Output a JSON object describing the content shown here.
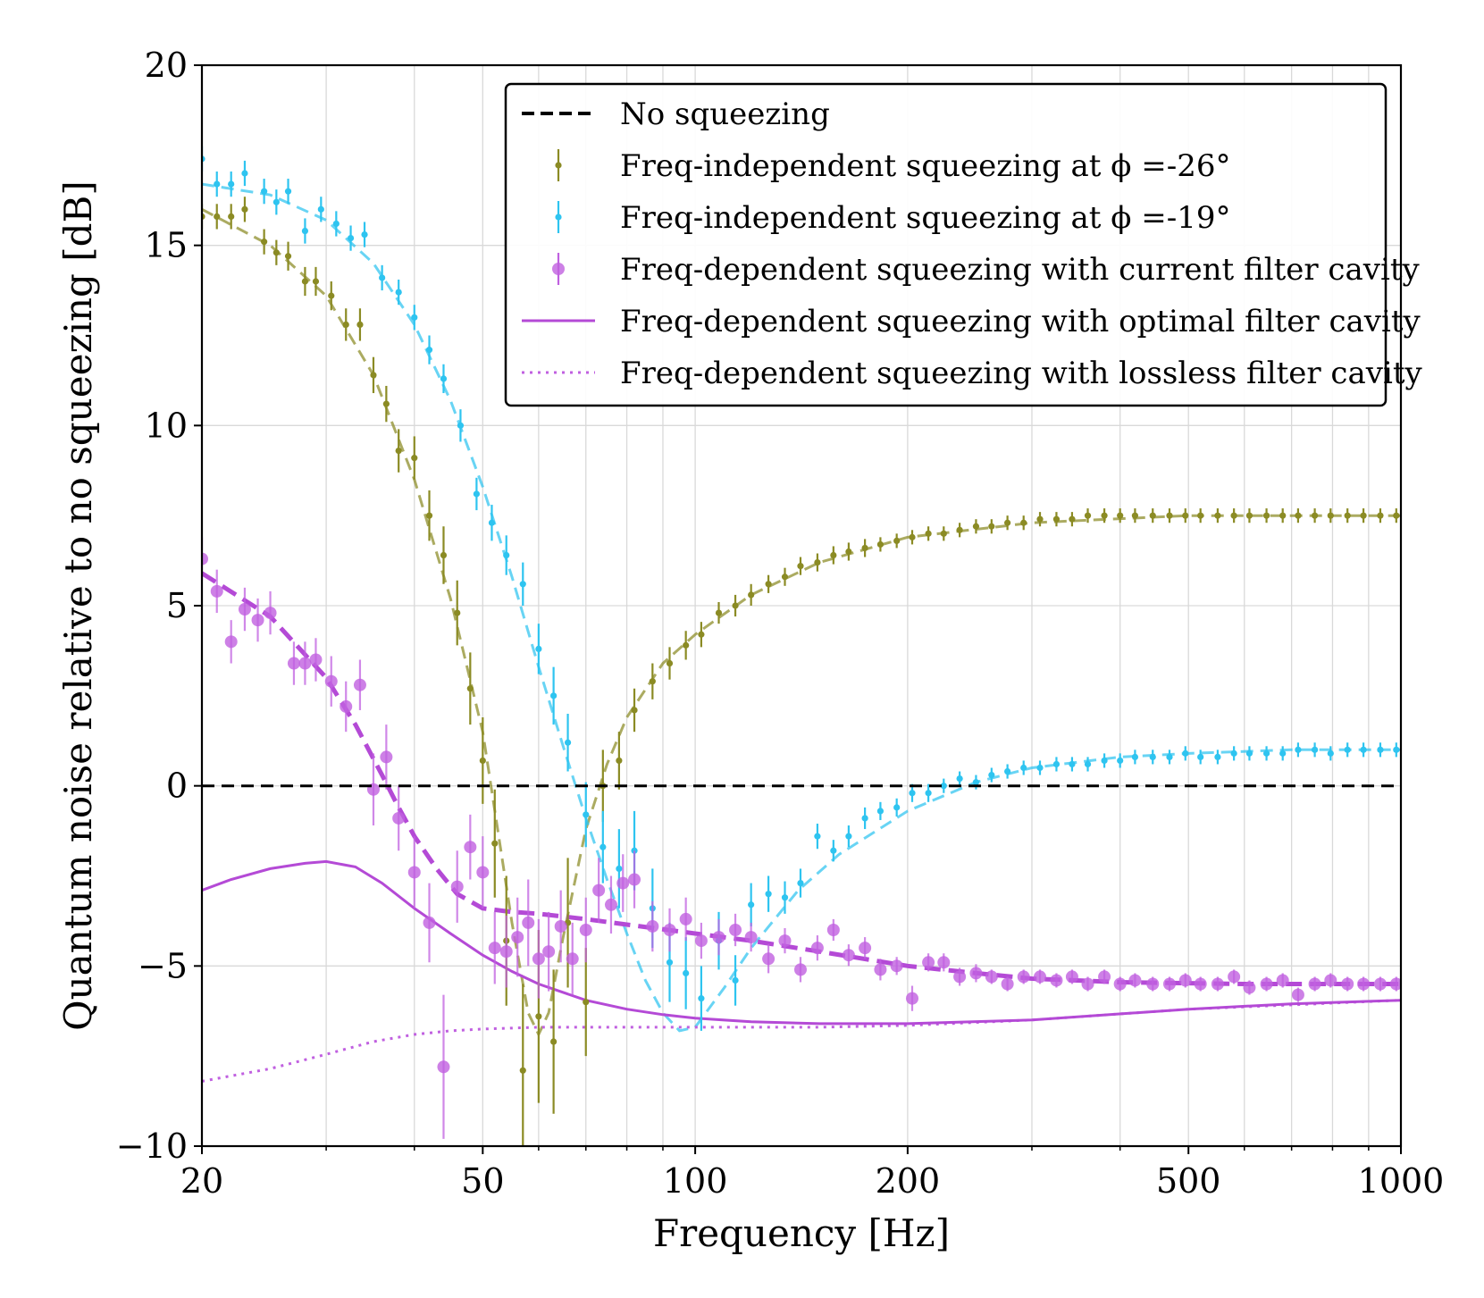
{
  "chart_data": {
    "type": "line",
    "title": "",
    "xlabel": "Frequency [Hz]",
    "ylabel": "Quantum noise relative to no squeezing [dB]",
    "xscale": "log",
    "xlim": [
      20,
      1000
    ],
    "ylim": [
      -10,
      20
    ],
    "xticks": [
      20,
      50,
      100,
      200,
      500,
      1000
    ],
    "xtick_labels": [
      "20",
      "50",
      "100",
      "200",
      "500",
      "1000"
    ],
    "yticks": [
      -10,
      -5,
      0,
      5,
      10,
      15,
      20
    ],
    "ytick_labels": [
      "−10",
      "−5",
      "0",
      "5",
      "10",
      "15",
      "20"
    ],
    "grid": true,
    "legend_position": "top-right",
    "colors": {
      "black": "#000000",
      "olive": "#8b8b24",
      "cyan": "#2ec4f0",
      "purple": "#b44ad6",
      "purple_light": "#c060e0"
    },
    "series": [
      {
        "name": "No squeezing",
        "kind": "line",
        "style": "dashed",
        "color": "#000000",
        "x": [
          20,
          1000
        ],
        "y": [
          0,
          0
        ]
      },
      {
        "name": "Freq-independent squeezing at ϕ =-26°",
        "kind": "points",
        "marker": "small-dot",
        "color": "#8b8b24",
        "x": [
          20,
          21,
          22,
          23,
          24.5,
          25.5,
          26.5,
          28,
          29,
          30.5,
          32,
          33.5,
          35,
          36.5,
          38,
          40,
          42,
          44,
          46,
          48,
          50,
          52,
          54,
          57,
          60,
          63,
          66,
          70,
          74,
          78,
          82,
          87,
          92,
          97,
          102,
          108,
          114,
          120,
          127,
          134,
          141,
          149,
          157,
          165,
          174,
          183,
          193,
          203,
          214,
          225,
          237,
          250,
          263,
          277,
          292,
          308,
          325,
          342,
          360,
          380,
          400,
          420,
          445,
          470,
          495,
          520,
          550,
          580,
          610,
          645,
          680,
          715,
          755,
          795,
          840,
          885,
          935,
          985
        ],
        "y": [
          15.8,
          15.8,
          15.8,
          16,
          15.1,
          14.8,
          14.7,
          14,
          14,
          13.6,
          12.8,
          12.8,
          11.4,
          10.6,
          9.3,
          9.1,
          7.5,
          6.4,
          4.8,
          2.7,
          0.7,
          -1.6,
          -4.3,
          -7.9,
          -6.4,
          -7.1,
          -3.8,
          -6,
          0,
          0.7,
          2.1,
          2.9,
          3.4,
          3.9,
          4.2,
          4.8,
          5,
          5.3,
          5.6,
          5.8,
          6.1,
          6.2,
          6.4,
          6.5,
          6.6,
          6.7,
          6.8,
          6.9,
          7,
          7,
          7.1,
          7.2,
          7.2,
          7.3,
          7.3,
          7.4,
          7.4,
          7.4,
          7.5,
          7.5,
          7.5,
          7.5,
          7.5,
          7.5,
          7.5,
          7.5,
          7.5,
          7.5,
          7.5,
          7.5,
          7.5,
          7.5,
          7.5,
          7.5,
          7.5,
          7.5,
          7.5,
          7.5
        ],
        "err": [
          0.35,
          0.35,
          0.35,
          0.35,
          0.35,
          0.35,
          0.4,
          0.4,
          0.4,
          0.4,
          0.45,
          0.45,
          0.5,
          0.5,
          0.6,
          0.6,
          0.7,
          0.8,
          0.9,
          1,
          1.2,
          1.5,
          1.8,
          2.4,
          2.4,
          2,
          1.8,
          1.5,
          1,
          0.8,
          0.6,
          0.5,
          0.45,
          0.4,
          0.35,
          0.3,
          0.3,
          0.3,
          0.25,
          0.25,
          0.25,
          0.25,
          0.25,
          0.25,
          0.25,
          0.2,
          0.2,
          0.2,
          0.2,
          0.2,
          0.2,
          0.2,
          0.2,
          0.2,
          0.2,
          0.2,
          0.2,
          0.2,
          0.2,
          0.2,
          0.2,
          0.2,
          0.2,
          0.2,
          0.2,
          0.2,
          0.2,
          0.2,
          0.2,
          0.2,
          0.2,
          0.2,
          0.2,
          0.2,
          0.2,
          0.2,
          0.2,
          0.2
        ]
      },
      {
        "name": "olive model fit",
        "kind": "line",
        "style": "dashed",
        "color": "#8b8b24",
        "legend": false,
        "x": [
          20,
          25,
          30,
          35,
          40,
          45,
          50,
          55,
          58,
          60,
          62,
          65,
          70,
          75,
          80,
          90,
          100,
          120,
          150,
          200,
          300,
          500,
          1000
        ],
        "y": [
          16,
          15,
          13.6,
          11.4,
          8.5,
          5.2,
          1.5,
          -3.8,
          -6.3,
          -6.9,
          -6.3,
          -4.2,
          -1.2,
          0.6,
          1.9,
          3.4,
          4.2,
          5.3,
          6.2,
          6.9,
          7.3,
          7.5,
          7.5
        ]
      },
      {
        "name": "Freq-independent squeezing at ϕ =-19°",
        "kind": "points",
        "marker": "small-dot",
        "color": "#2ec4f0",
        "x": [
          20,
          21,
          22,
          23,
          24.5,
          25.5,
          26.5,
          28,
          29.5,
          31,
          32.5,
          34,
          36,
          38,
          40,
          42,
          44,
          46.5,
          49,
          51.5,
          54,
          57,
          60,
          63,
          66,
          70,
          74,
          78,
          82,
          87,
          92,
          97,
          102,
          108,
          114,
          120,
          127,
          134,
          141,
          149,
          157,
          165,
          174,
          183,
          193,
          203,
          214,
          225,
          237,
          250,
          263,
          277,
          292,
          308,
          325,
          342,
          360,
          380,
          400,
          420,
          445,
          470,
          495,
          520,
          550,
          580,
          610,
          645,
          680,
          715,
          755,
          795,
          840,
          885,
          935,
          985
        ],
        "y": [
          17.4,
          16.7,
          16.7,
          17,
          16.5,
          16.2,
          16.5,
          15.4,
          16,
          15.6,
          15.2,
          15.3,
          14.1,
          13.7,
          13,
          12.1,
          11.3,
          10,
          8.1,
          7.3,
          6.4,
          5.6,
          3.8,
          2.5,
          1.2,
          -0.8,
          -1.7,
          -2.3,
          -1.8,
          -3.4,
          -4.9,
          -5.2,
          -5.9,
          -4.3,
          -5.4,
          -3.3,
          -3,
          -3.1,
          -2.7,
          -1.4,
          -1.8,
          -1.4,
          -0.9,
          -0.7,
          -0.6,
          -0.2,
          -0.2,
          0,
          0.2,
          0.1,
          0.3,
          0.4,
          0.5,
          0.5,
          0.6,
          0.6,
          0.6,
          0.7,
          0.7,
          0.8,
          0.8,
          0.8,
          0.9,
          0.8,
          0.8,
          0.9,
          0.9,
          0.9,
          0.9,
          1,
          1,
          0.9,
          1,
          1,
          1,
          1
        ],
        "err": [
          0.35,
          0.35,
          0.35,
          0.35,
          0.35,
          0.35,
          0.35,
          0.35,
          0.35,
          0.35,
          0.35,
          0.35,
          0.35,
          0.35,
          0.35,
          0.4,
          0.4,
          0.45,
          0.45,
          0.5,
          0.55,
          0.6,
          0.7,
          0.8,
          0.8,
          0.9,
          1,
          1.1,
          1.1,
          1.1,
          1.1,
          1,
          0.9,
          0.8,
          0.7,
          0.6,
          0.5,
          0.45,
          0.4,
          0.35,
          0.3,
          0.3,
          0.3,
          0.25,
          0.25,
          0.25,
          0.25,
          0.2,
          0.2,
          0.2,
          0.2,
          0.2,
          0.2,
          0.2,
          0.2,
          0.2,
          0.2,
          0.2,
          0.2,
          0.2,
          0.2,
          0.2,
          0.2,
          0.2,
          0.2,
          0.2,
          0.2,
          0.2,
          0.2,
          0.2,
          0.2,
          0.2,
          0.2,
          0.2,
          0.2,
          0.2
        ]
      },
      {
        "name": "cyan model fit",
        "kind": "line",
        "style": "dashed",
        "color": "#2ec4f0",
        "legend": false,
        "x": [
          20,
          25,
          30,
          35,
          40,
          45,
          50,
          55,
          60,
          65,
          70,
          75,
          80,
          85,
          90,
          95,
          100,
          110,
          120,
          140,
          160,
          200,
          250,
          300,
          400,
          500,
          700,
          1000
        ],
        "y": [
          16.7,
          16.4,
          15.7,
          14.5,
          12.8,
          10.7,
          8.3,
          5.8,
          3.3,
          1.1,
          -0.9,
          -2.6,
          -4.1,
          -5.4,
          -6.3,
          -6.8,
          -6.7,
          -5.6,
          -4.5,
          -2.9,
          -1.9,
          -0.7,
          0.1,
          0.5,
          0.8,
          0.9,
          1,
          1
        ]
      },
      {
        "name": "Freq-dependent squeezing with current filter cavity",
        "kind": "points",
        "marker": "big-dot",
        "color": "#c060e0",
        "x": [
          20,
          21,
          22,
          23,
          24,
          25,
          27,
          28,
          29,
          30.5,
          32,
          33.5,
          35,
          36.5,
          38,
          40,
          42,
          44,
          46,
          48,
          50,
          52,
          54,
          56,
          58,
          60,
          62,
          64.5,
          67,
          70,
          73,
          76,
          79,
          82,
          87,
          92,
          97,
          102,
          108,
          114,
          120,
          127,
          134,
          141,
          149,
          157,
          165,
          174,
          183,
          193,
          203,
          214,
          225,
          237,
          250,
          263,
          277,
          292,
          308,
          325,
          342,
          360,
          380,
          400,
          420,
          445,
          470,
          495,
          520,
          550,
          580,
          610,
          645,
          680,
          715,
          755,
          795,
          840,
          885,
          935,
          985
        ],
        "y": [
          6.3,
          5.4,
          4,
          4.9,
          4.6,
          4.8,
          3.4,
          3.4,
          3.5,
          2.9,
          2.2,
          2.8,
          -0.1,
          0.8,
          -0.9,
          -2.4,
          -3.8,
          -7.8,
          -2.8,
          -1.7,
          -2.4,
          -4.5,
          -4.6,
          -4.2,
          -3.8,
          -4.8,
          -4.6,
          -3.9,
          -4.8,
          -4,
          -2.9,
          -3.3,
          -2.7,
          -2.6,
          -3.9,
          -4,
          -3.7,
          -4.3,
          -4.2,
          -4,
          -4.2,
          -4.8,
          -4.3,
          -5.1,
          -4.5,
          -4,
          -4.7,
          -4.5,
          -5.1,
          -5,
          -5.9,
          -4.9,
          -4.9,
          -5.3,
          -5.2,
          -5.3,
          -5.5,
          -5.3,
          -5.3,
          -5.4,
          -5.3,
          -5.5,
          -5.3,
          -5.5,
          -5.4,
          -5.5,
          -5.5,
          -5.4,
          -5.5,
          -5.5,
          -5.3,
          -5.6,
          -5.5,
          -5.4,
          -5.8,
          -5.5,
          -5.4,
          -5.5,
          -5.5,
          -5.5,
          -5.5
        ],
        "err": [
          0.6,
          0.6,
          0.6,
          0.6,
          0.6,
          0.6,
          0.6,
          0.6,
          0.6,
          0.7,
          0.7,
          0.7,
          1,
          0.9,
          0.9,
          1,
          1.1,
          2,
          1,
          0.9,
          1,
          1,
          1,
          1.1,
          1.2,
          1.1,
          1.1,
          1,
          1,
          0.9,
          0.9,
          0.8,
          0.8,
          0.8,
          0.7,
          0.6,
          0.6,
          0.5,
          0.5,
          0.45,
          0.4,
          0.4,
          0.35,
          0.35,
          0.35,
          0.3,
          0.3,
          0.3,
          0.3,
          0.25,
          0.35,
          0.25,
          0.25,
          0.25,
          0.25,
          0.2,
          0.2,
          0.2,
          0.2,
          0.2,
          0.2,
          0.2,
          0.2,
          0.2,
          0.2,
          0.2,
          0.2,
          0.2,
          0.2,
          0.2,
          0.2,
          0.2,
          0.2,
          0.2,
          0.2,
          0.2,
          0.2,
          0.2,
          0.2,
          0.2,
          0.2
        ]
      },
      {
        "name": "purple model fit",
        "kind": "line",
        "style": "dashed-thick",
        "color": "#b44ad6",
        "legend": false,
        "x": [
          20,
          25,
          30,
          33,
          36,
          38,
          40,
          43,
          46,
          50,
          55,
          60,
          70,
          80,
          100,
          120,
          150,
          200,
          250,
          300,
          400,
          600,
          1000
        ],
        "y": [
          5.9,
          4.7,
          3,
          1.7,
          0.3,
          -0.6,
          -1.4,
          -2.3,
          -3,
          -3.4,
          -3.5,
          -3.55,
          -3.7,
          -3.85,
          -4.1,
          -4.3,
          -4.6,
          -5,
          -5.2,
          -5.35,
          -5.45,
          -5.5,
          -5.5
        ]
      },
      {
        "name": "Freq-dependent squeezing with optimal filter cavity",
        "kind": "line",
        "style": "solid",
        "color": "#b44ad6",
        "x": [
          20,
          22,
          25,
          28,
          30,
          33,
          36,
          40,
          45,
          50,
          55,
          60,
          70,
          80,
          90,
          100,
          120,
          150,
          200,
          300,
          500,
          700,
          1000
        ],
        "y": [
          -2.9,
          -2.6,
          -2.3,
          -2.15,
          -2.1,
          -2.25,
          -2.7,
          -3.4,
          -4.1,
          -4.7,
          -5.15,
          -5.5,
          -5.95,
          -6.2,
          -6.35,
          -6.45,
          -6.55,
          -6.6,
          -6.6,
          -6.5,
          -6.2,
          -6.05,
          -5.95
        ]
      },
      {
        "name": "Freq-dependent squeezing with lossless filter cavity",
        "kind": "line",
        "style": "dotted",
        "color": "#c060e0",
        "x": [
          20,
          25,
          30,
          35,
          40,
          45,
          50,
          60,
          80,
          100,
          150,
          200,
          300,
          500,
          1000
        ],
        "y": [
          -8.2,
          -7.85,
          -7.45,
          -7.1,
          -6.9,
          -6.8,
          -6.75,
          -6.7,
          -6.7,
          -6.7,
          -6.7,
          -6.65,
          -6.5,
          -6.2,
          -5.95
        ]
      }
    ],
    "legend": [
      {
        "label": "No squeezing",
        "series": 0
      },
      {
        "label": "Freq-independent squeezing at ϕ =-26°",
        "series": 1
      },
      {
        "label": "Freq-independent squeezing at ϕ =-19°",
        "series": 3
      },
      {
        "label": "Freq-dependent squeezing with current filter cavity",
        "series": 5
      },
      {
        "label": "Freq-dependent squeezing with optimal filter cavity",
        "series": 7
      },
      {
        "label": "Freq-dependent squeezing with lossless filter cavity",
        "series": 8
      }
    ]
  }
}
